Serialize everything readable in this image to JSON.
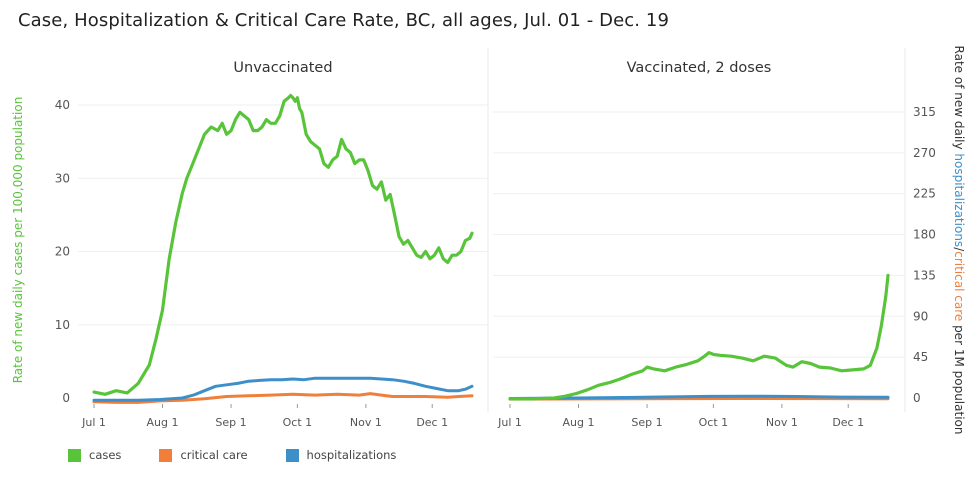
{
  "title": "Case, Hospitalization & Critical Care Rate, BC, all ages, Jul. 01 - Dec. 19",
  "colors": {
    "cases": "#58c43a",
    "critical_care": "#f07f3c",
    "hospitalizations": "#3d8fc9",
    "grid": "#efefef",
    "left_axis_label": "#58c43a",
    "right_axis_text": "#333333"
  },
  "legend": [
    {
      "key": "cases",
      "label": "cases"
    },
    {
      "key": "critical_care",
      "label": "critical care"
    },
    {
      "key": "hospitalizations",
      "label": "hospitalizations"
    }
  ],
  "chart_data": [
    {
      "type": "line",
      "title": "Unvaccinated",
      "ylabel": "Rate of new daily cases per 100,000 population",
      "ylim": [
        -1,
        44
      ],
      "yticks": [
        0,
        10,
        20,
        30,
        40
      ],
      "x_tick_labels": [
        "Jul 1",
        "Aug 1",
        "Sep 1",
        "Oct 1",
        "Nov 1",
        "Dec 1"
      ],
      "x_tick_days": [
        0,
        31,
        62,
        92,
        123,
        153
      ],
      "x_range_days": [
        0,
        171
      ],
      "grid": true,
      "series": [
        {
          "name": "cases",
          "x": [
            0,
            5,
            10,
            15,
            20,
            25,
            28,
            31,
            34,
            37,
            40,
            42,
            44,
            46,
            48,
            50,
            53,
            56,
            58,
            60,
            62,
            64,
            66,
            68,
            70,
            72,
            74,
            76,
            78,
            80,
            82,
            84,
            86,
            88,
            89,
            90,
            91,
            92,
            93,
            94,
            96,
            98,
            100,
            102,
            104,
            106,
            108,
            110,
            112,
            114,
            116,
            118,
            120,
            122,
            124,
            126,
            128,
            130,
            132,
            134,
            136,
            138,
            140,
            142,
            144,
            146,
            148,
            150,
            152,
            154,
            156,
            158,
            160,
            162,
            164,
            166,
            168,
            170,
            171
          ],
          "y": [
            0.8,
            0.5,
            1.0,
            0.7,
            2.0,
            4.5,
            8,
            12,
            19,
            24,
            28,
            30,
            31.5,
            33,
            34.5,
            36,
            37,
            36.5,
            37.5,
            36,
            36.5,
            38,
            39,
            38.5,
            38,
            36.5,
            36.5,
            37,
            38,
            37.5,
            37.5,
            38.5,
            40.5,
            41,
            41.3,
            41,
            40.5,
            41,
            39.5,
            39,
            36,
            35,
            34.5,
            34,
            32,
            31.5,
            32.5,
            33,
            35.3,
            34,
            33.5,
            32,
            32.5,
            32.5,
            31,
            29,
            28.5,
            29.5,
            27,
            27.8,
            25,
            22,
            21,
            21.5,
            20.5,
            19.5,
            19.2,
            20,
            19,
            19.5,
            20.5,
            19,
            18.5,
            19.5,
            19.5,
            20,
            21.5,
            21.8,
            22.5
          ]
        },
        {
          "name": "critical care",
          "x": [
            0,
            10,
            20,
            30,
            40,
            50,
            60,
            70,
            80,
            90,
            100,
            110,
            120,
            125,
            130,
            135,
            140,
            150,
            160,
            165,
            171
          ],
          "y": [
            -0.5,
            -0.6,
            -0.6,
            -0.4,
            -0.3,
            -0.1,
            0.2,
            0.3,
            0.4,
            0.5,
            0.4,
            0.5,
            0.4,
            0.6,
            0.4,
            0.2,
            0.2,
            0.2,
            0.1,
            0.2,
            0.3
          ]
        },
        {
          "name": "hospitalizations",
          "x": [
            0,
            10,
            20,
            30,
            40,
            45,
            50,
            55,
            60,
            65,
            70,
            75,
            80,
            85,
            90,
            95,
            100,
            105,
            110,
            115,
            120,
            125,
            130,
            135,
            140,
            145,
            150,
            155,
            160,
            165,
            168,
            171
          ],
          "y": [
            -0.3,
            -0.3,
            -0.3,
            -0.2,
            0.0,
            0.4,
            1.0,
            1.6,
            1.8,
            2.0,
            2.3,
            2.4,
            2.5,
            2.5,
            2.6,
            2.5,
            2.7,
            2.7,
            2.7,
            2.7,
            2.7,
            2.7,
            2.6,
            2.5,
            2.3,
            2.0,
            1.6,
            1.3,
            1.0,
            1.0,
            1.2,
            1.6
          ]
        }
      ]
    },
    {
      "type": "line",
      "title": "Vaccinated, 2 doses",
      "ylabel_parts": [
        {
          "key": "right_axis_prefix",
          "text": "Rate of new daily "
        },
        {
          "key": "right_axis_hosp",
          "text": "hospitalizations"
        },
        {
          "key": "right_axis_slash",
          "text": "/"
        },
        {
          "key": "right_axis_crit",
          "text": "critical care"
        },
        {
          "key": "right_axis_suffix",
          "text": " per 1M population"
        }
      ],
      "ylim": [
        -8,
        373
      ],
      "yticks": [
        0,
        45,
        90,
        135,
        180,
        225,
        270,
        315
      ],
      "x_tick_labels": [
        "Jul 1",
        "Aug 1",
        "Sep 1",
        "Oct 1",
        "Nov 1",
        "Dec 1"
      ],
      "x_tick_days": [
        0,
        31,
        62,
        92,
        123,
        153
      ],
      "x_range_days": [
        0,
        171
      ],
      "grid": true,
      "series": [
        {
          "name": "cases",
          "x": [
            0,
            10,
            20,
            25,
            30,
            35,
            40,
            45,
            50,
            55,
            60,
            62,
            65,
            70,
            75,
            80,
            85,
            88,
            90,
            92,
            95,
            100,
            105,
            110,
            115,
            120,
            125,
            128,
            132,
            136,
            140,
            145,
            150,
            155,
            160,
            163,
            166,
            168,
            170,
            171
          ],
          "y": [
            -1,
            -1,
            0,
            2,
            5,
            9,
            14,
            17,
            21,
            26,
            30,
            34,
            32,
            30,
            34,
            37,
            41,
            46,
            50,
            48,
            47,
            46,
            44,
            41,
            46,
            44,
            36,
            34,
            40,
            38,
            34,
            33,
            30,
            31,
            32,
            36,
            55,
            80,
            112,
            135
          ]
        },
        {
          "name": "critical care",
          "x": [
            0,
            60,
            100,
            171
          ],
          "y": [
            -1.2,
            -0.8,
            -0.6,
            -0.8
          ]
        },
        {
          "name": "hospitalizations",
          "x": [
            0,
            30,
            60,
            90,
            110,
            130,
            150,
            171
          ],
          "y": [
            -0.5,
            0.0,
            0.8,
            1.8,
            2.0,
            1.6,
            1.0,
            0.8
          ]
        }
      ]
    }
  ]
}
